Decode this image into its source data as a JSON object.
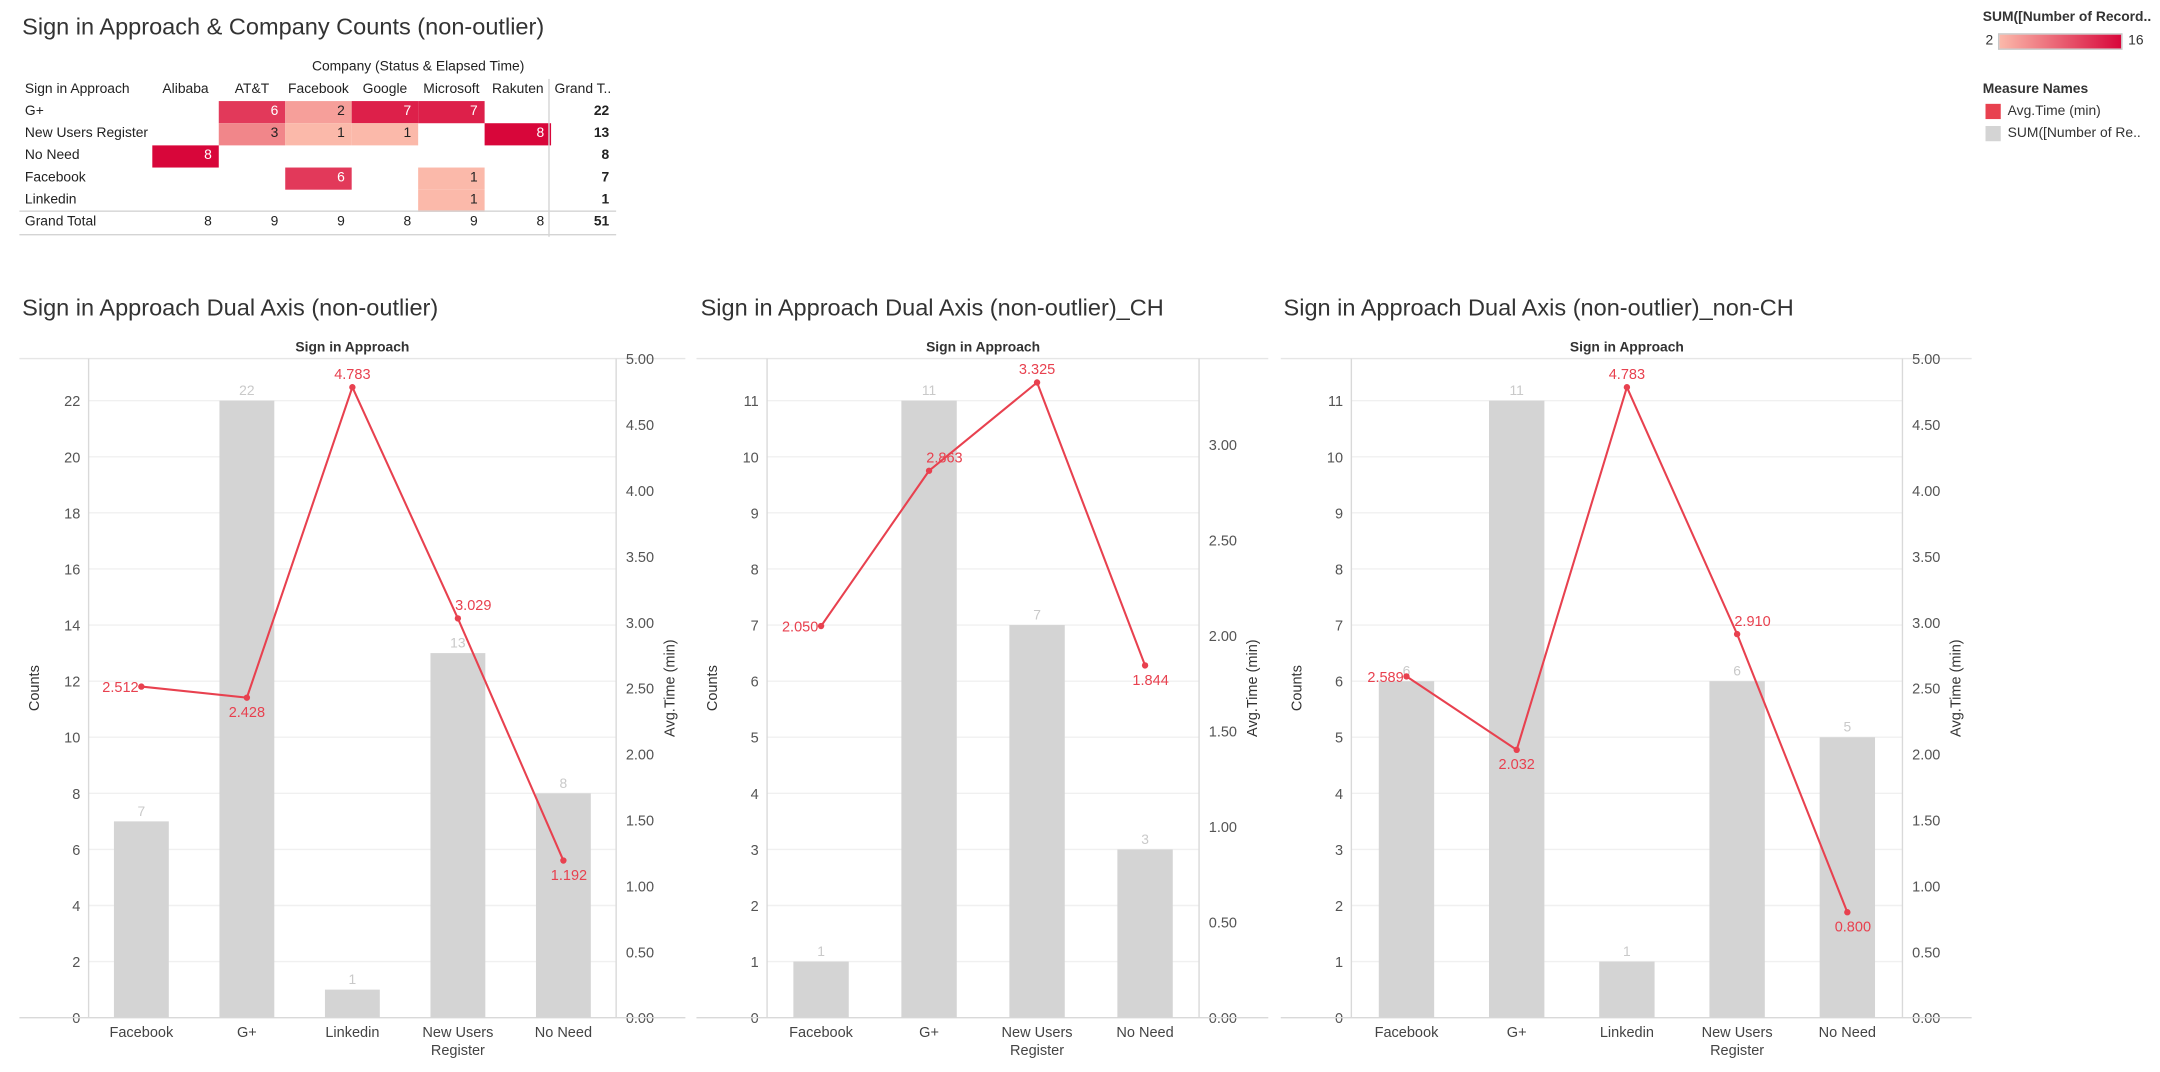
{
  "crosstab": {
    "title": "Sign in Approach & Company Counts (non-outlier)",
    "column_group_label": "Company (Status & Elapsed Time)",
    "row_header": "Sign in Approach",
    "columns": [
      "Alibaba",
      "AT&T",
      "Facebook",
      "Google",
      "Microsoft",
      "Rakuten",
      "Grand T.."
    ],
    "rows": [
      {
        "label": "G+",
        "values": [
          null,
          6,
          2,
          7,
          7,
          null
        ],
        "total": 22
      },
      {
        "label": "New Users Register",
        "values": [
          null,
          3,
          1,
          1,
          null,
          8
        ],
        "total": 13
      },
      {
        "label": "No Need",
        "values": [
          8,
          null,
          null,
          null,
          null,
          null
        ],
        "total": 8
      },
      {
        "label": "Facebook",
        "values": [
          null,
          null,
          6,
          null,
          1,
          null
        ],
        "total": 7
      },
      {
        "label": "Linkedin",
        "values": [
          null,
          null,
          null,
          null,
          1,
          null
        ],
        "total": 1
      }
    ],
    "grand_total": {
      "label": "Grand Total",
      "values": [
        8,
        9,
        9,
        8,
        9,
        8
      ],
      "total": 51
    }
  },
  "color_legend": {
    "title": "SUM([Number of Record..",
    "min": "2",
    "max": "16",
    "min_color": "#fbb9aa",
    "max_color": "#d8063a"
  },
  "measure_legend": {
    "title": "Measure Names",
    "items": [
      {
        "label": "Avg.Time (min)",
        "color": "#e8414f"
      },
      {
        "label": "SUM([Number of Re..",
        "color": "#d4d4d4"
      }
    ]
  },
  "colors": {
    "bar": "#d4d4d4",
    "line": "#e8414f",
    "bar_label": "#c9c9c9"
  },
  "chart_data": [
    {
      "type": "bar+line",
      "title": "Sign in Approach Dual Axis (non-outlier)",
      "header": "Sign in Approach",
      "ylabel": "Counts",
      "y2label": "Avg.Time (min)",
      "categories": [
        "Facebook",
        "G+",
        "Linkedin",
        "New Users Register",
        "No Need"
      ],
      "category_lines": [
        [
          "Facebook"
        ],
        [
          "G+"
        ],
        [
          "Linkedin"
        ],
        [
          "New Users",
          "Register"
        ],
        [
          "No Need"
        ]
      ],
      "series": [
        {
          "name": "SUM([Number of Re..",
          "axis": "left",
          "values": [
            7,
            22,
            1,
            13,
            8
          ],
          "labels": [
            "7",
            "22",
            "1",
            "13",
            "8"
          ]
        },
        {
          "name": "Avg.Time (min)",
          "axis": "right",
          "values": [
            2.512,
            2.428,
            4.783,
            3.029,
            1.192
          ],
          "labels": [
            "2.512",
            "2.428",
            "4.783",
            "3.029",
            "1.192"
          ]
        }
      ],
      "ylim": [
        0,
        23.5
      ],
      "yticks": [
        0,
        2,
        4,
        6,
        8,
        10,
        12,
        14,
        16,
        18,
        20,
        22
      ],
      "y2lim": [
        0,
        5.0
      ],
      "y2ticks": [
        0,
        0.5,
        1.0,
        1.5,
        2.0,
        2.5,
        3.0,
        3.5,
        4.0,
        4.5,
        5.0
      ],
      "y2ticklabels": [
        "0.00",
        "0.50",
        "1.00",
        "1.50",
        "2.00",
        "2.50",
        "3.00",
        "3.50",
        "4.00",
        "4.50",
        "5.00"
      ]
    },
    {
      "type": "bar+line",
      "title": "Sign in Approach Dual Axis (non-outlier)_CH",
      "header": "Sign in Approach",
      "ylabel": "Counts",
      "y2label": "Avg.Time (min)",
      "categories": [
        "Facebook",
        "G+",
        "New Users Register",
        "No Need"
      ],
      "category_lines": [
        [
          "Facebook"
        ],
        [
          "G+"
        ],
        [
          "New Users",
          "Register"
        ],
        [
          "No Need"
        ]
      ],
      "series": [
        {
          "name": "SUM([Number of Re..",
          "axis": "left",
          "values": [
            1,
            11,
            7,
            3
          ],
          "labels": [
            "1",
            "11",
            "7",
            "3"
          ]
        },
        {
          "name": "Avg.Time (min)",
          "axis": "right",
          "values": [
            2.05,
            2.863,
            3.325,
            1.844
          ],
          "labels": [
            "2.050",
            "2.863",
            "3.325",
            "1.844"
          ]
        }
      ],
      "ylim": [
        0,
        11.75
      ],
      "yticks": [
        0,
        1,
        2,
        3,
        4,
        5,
        6,
        7,
        8,
        9,
        10,
        11
      ],
      "y2lim": [
        0,
        3.45
      ],
      "y2ticks": [
        0,
        0.5,
        1.0,
        1.5,
        2.0,
        2.5,
        3.0
      ],
      "y2ticklabels": [
        "0.00",
        "0.50",
        "1.00",
        "1.50",
        "2.00",
        "2.50",
        "3.00"
      ]
    },
    {
      "type": "bar+line",
      "title": "Sign in Approach Dual Axis (non-outlier)_non-CH",
      "header": "Sign in Approach",
      "ylabel": "Counts",
      "y2label": "Avg.Time (min)",
      "categories": [
        "Facebook",
        "G+",
        "Linkedin",
        "New Users Register",
        "No Need"
      ],
      "category_lines": [
        [
          "Facebook"
        ],
        [
          "G+"
        ],
        [
          "Linkedin"
        ],
        [
          "New Users",
          "Register"
        ],
        [
          "No Need"
        ]
      ],
      "series": [
        {
          "name": "SUM([Number of Re..",
          "axis": "left",
          "values": [
            6,
            11,
            1,
            6,
            5
          ],
          "labels": [
            "6",
            "11",
            "1",
            "6",
            "5"
          ]
        },
        {
          "name": "Avg.Time (min)",
          "axis": "right",
          "values": [
            2.589,
            2.032,
            4.783,
            2.91,
            0.8
          ],
          "labels": [
            "2.589",
            "2.032",
            "4.783",
            "2.910",
            "0.800"
          ]
        }
      ],
      "ylim": [
        0,
        11.75
      ],
      "yticks": [
        0,
        1,
        2,
        3,
        4,
        5,
        6,
        7,
        8,
        9,
        10,
        11
      ],
      "y2lim": [
        0,
        5.0
      ],
      "y2ticks": [
        0,
        0.5,
        1.0,
        1.5,
        2.0,
        2.5,
        3.0,
        3.5,
        4.0,
        4.5,
        5.0
      ],
      "y2ticklabels": [
        "0.00",
        "0.50",
        "1.00",
        "1.50",
        "2.00",
        "2.50",
        "3.00",
        "3.50",
        "4.00",
        "4.50",
        "5.00"
      ]
    }
  ]
}
